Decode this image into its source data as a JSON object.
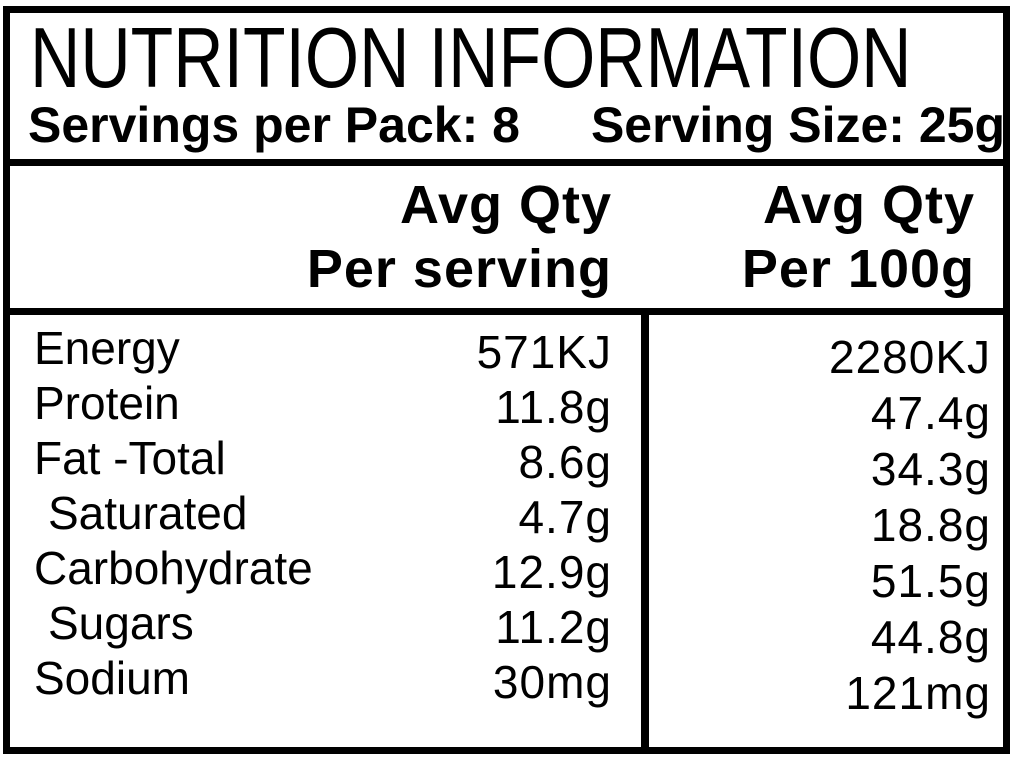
{
  "colors": {
    "text": "#000000",
    "border": "#000000",
    "background": "#ffffff"
  },
  "label": {
    "title": "NUTRITION INFORMATION",
    "servings_per_pack": "Servings per Pack: 8",
    "serving_size": "Serving Size: 25g",
    "columns": [
      {
        "line1": "Avg Qty",
        "line2": "Per serving"
      },
      {
        "line1": "Avg Qty",
        "line2": "Per 100g"
      }
    ],
    "rows": [
      {
        "nutrient": "Energy",
        "per_serving": "571KJ",
        "per_100g": "2280KJ"
      },
      {
        "nutrient": "Protein",
        "per_serving": "11.8g",
        "per_100g": "47.4g"
      },
      {
        "nutrient": "Fat -Total",
        "per_serving": "8.6g",
        "per_100g": "34.3g"
      },
      {
        "nutrient": "Saturated",
        "per_serving": "4.7g",
        "per_100g": "18.8g"
      },
      {
        "nutrient": "Carbohydrate",
        "per_serving": "12.9g",
        "per_100g": "51.5g"
      },
      {
        "nutrient": "Sugars",
        "per_serving": "11.2g",
        "per_100g": "44.8g"
      },
      {
        "nutrient": "Sodium",
        "per_serving": "30mg",
        "per_100g": "121mg"
      }
    ]
  }
}
